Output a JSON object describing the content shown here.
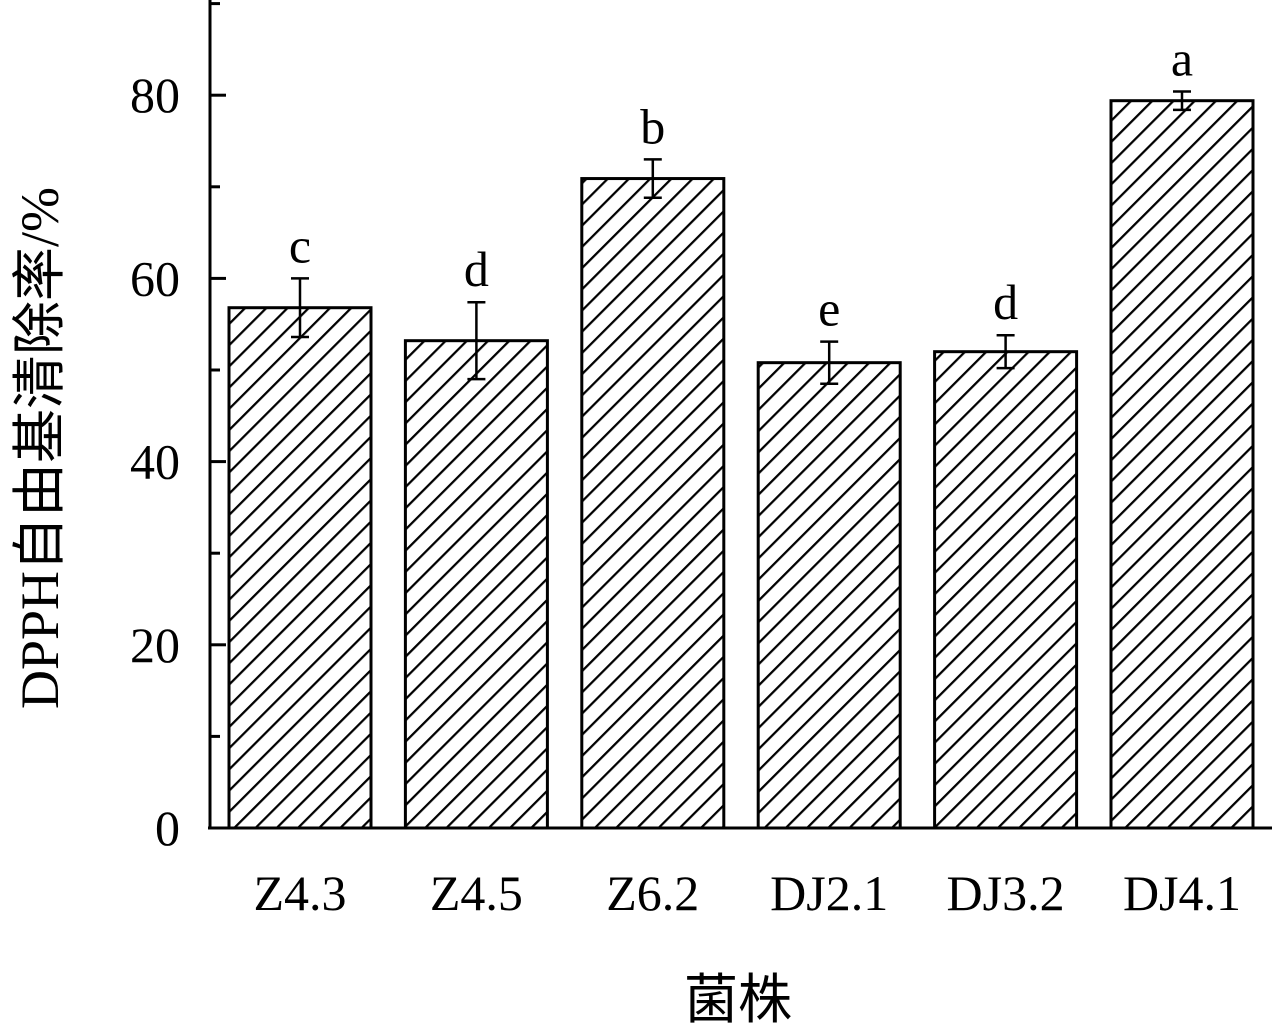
{
  "chart_data": {
    "type": "bar",
    "title": "",
    "xlabel": "菌株",
    "ylabel": "DPPH自由基清除率/%",
    "categories": [
      "Z4.3",
      "Z4.5",
      "Z6.2",
      "DJ2.1",
      "DJ3.2",
      "DJ4.1"
    ],
    "values": [
      56.8,
      53.2,
      70.9,
      50.8,
      52.0,
      79.4
    ],
    "errors": [
      3.2,
      4.2,
      2.1,
      2.3,
      1.8,
      1.0
    ],
    "significance": [
      "c",
      "d",
      "b",
      "e",
      "d",
      "a"
    ],
    "ylim": [
      0,
      90
    ],
    "yticks": [
      "0",
      "20",
      "40",
      "60",
      "80"
    ],
    "bar_pattern": "diagonal-hatch",
    "colors": {
      "bar_stroke": "#000000",
      "hatch": "#000000",
      "fill": "#ffffff"
    }
  }
}
